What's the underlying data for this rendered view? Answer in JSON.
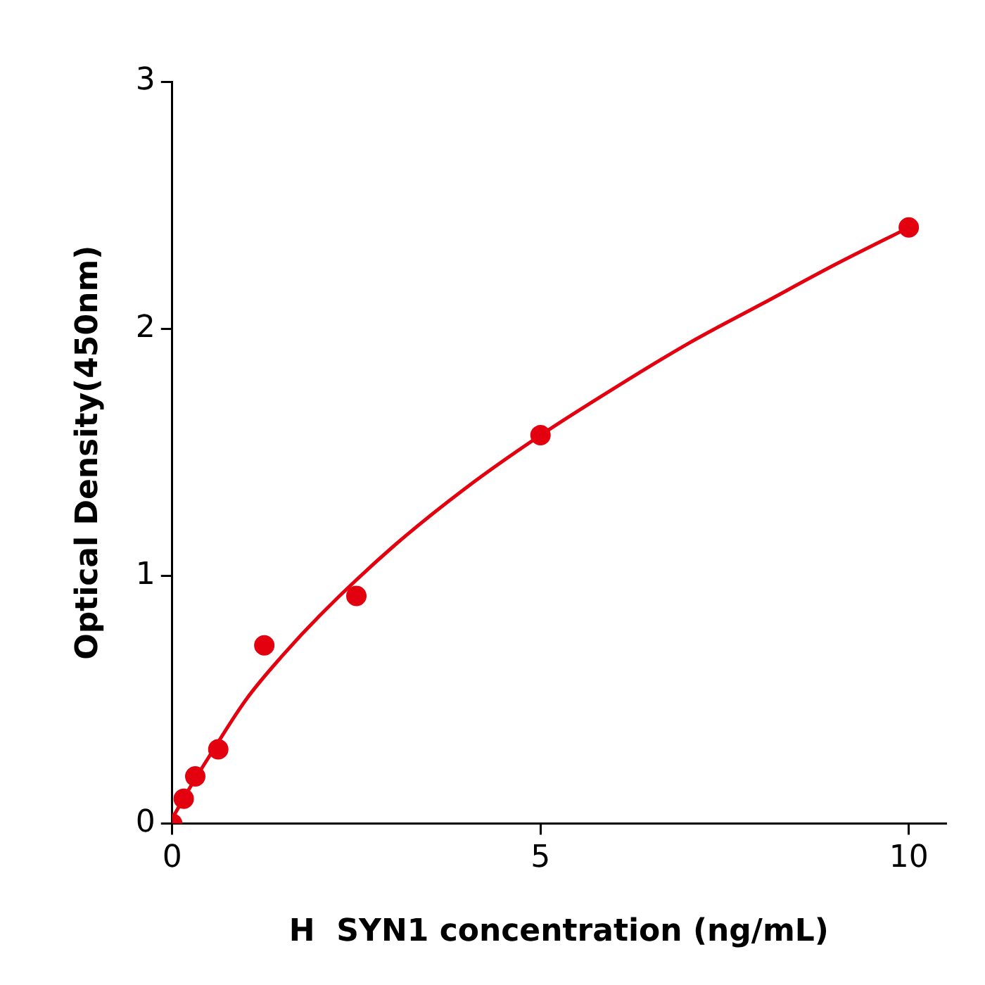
{
  "chart_data": {
    "type": "scatter",
    "xlabel": "H  SYN1 concentration (ng/mL)",
    "ylabel": "Optical Density(450nm)",
    "xlim": [
      0,
      10.5
    ],
    "ylim": [
      0,
      3
    ],
    "xticks": [
      0,
      5,
      10
    ],
    "yticks": [
      0,
      1,
      2,
      3
    ],
    "grid": false,
    "legend": false,
    "series": [
      {
        "type": "line",
        "color": "#e3000f",
        "marker": "none",
        "x": [
          0,
          0.25,
          0.5,
          1,
          1.5,
          2,
          3,
          4,
          5,
          6,
          7,
          8,
          9,
          10
        ],
        "values": [
          0.02,
          0.15,
          0.27,
          0.5,
          0.68,
          0.84,
          1.12,
          1.36,
          1.57,
          1.76,
          1.94,
          2.1,
          2.26,
          2.41
        ]
      },
      {
        "color": "#e3000f",
        "marker": "circle",
        "x": [
          0,
          0.156,
          0.3125,
          0.625,
          1.25,
          2.5,
          5,
          10
        ],
        "values": [
          0,
          0.1,
          0.19,
          0.3,
          0.72,
          0.92,
          1.57,
          2.41
        ]
      }
    ]
  }
}
